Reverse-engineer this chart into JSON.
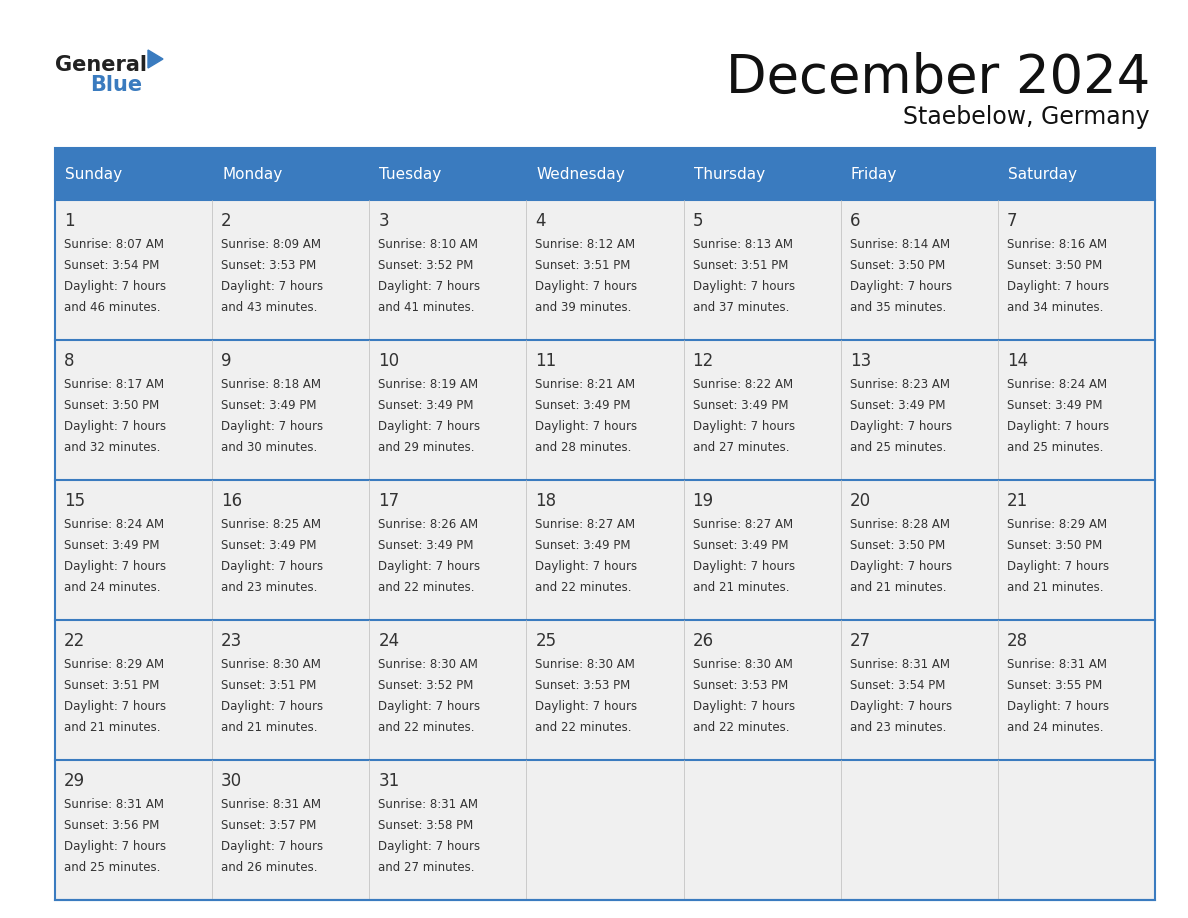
{
  "title": "December 2024",
  "subtitle": "Staebelow, Germany",
  "header_color": "#3a7bbf",
  "header_text_color": "#ffffff",
  "cell_bg_color": "#f0f0f0",
  "border_color": "#3a7bbf",
  "separator_color": "#3a7bbf",
  "text_color": "#333333",
  "days_of_week": [
    "Sunday",
    "Monday",
    "Tuesday",
    "Wednesday",
    "Thursday",
    "Friday",
    "Saturday"
  ],
  "weeks": [
    [
      {
        "day": 1,
        "sunrise": "8:07 AM",
        "sunset": "3:54 PM",
        "daylight_min": "46"
      },
      {
        "day": 2,
        "sunrise": "8:09 AM",
        "sunset": "3:53 PM",
        "daylight_min": "43"
      },
      {
        "day": 3,
        "sunrise": "8:10 AM",
        "sunset": "3:52 PM",
        "daylight_min": "41"
      },
      {
        "day": 4,
        "sunrise": "8:12 AM",
        "sunset": "3:51 PM",
        "daylight_min": "39"
      },
      {
        "day": 5,
        "sunrise": "8:13 AM",
        "sunset": "3:51 PM",
        "daylight_min": "37"
      },
      {
        "day": 6,
        "sunrise": "8:14 AM",
        "sunset": "3:50 PM",
        "daylight_min": "35"
      },
      {
        "day": 7,
        "sunrise": "8:16 AM",
        "sunset": "3:50 PM",
        "daylight_min": "34"
      }
    ],
    [
      {
        "day": 8,
        "sunrise": "8:17 AM",
        "sunset": "3:50 PM",
        "daylight_min": "32"
      },
      {
        "day": 9,
        "sunrise": "8:18 AM",
        "sunset": "3:49 PM",
        "daylight_min": "30"
      },
      {
        "day": 10,
        "sunrise": "8:19 AM",
        "sunset": "3:49 PM",
        "daylight_min": "29"
      },
      {
        "day": 11,
        "sunrise": "8:21 AM",
        "sunset": "3:49 PM",
        "daylight_min": "28"
      },
      {
        "day": 12,
        "sunrise": "8:22 AM",
        "sunset": "3:49 PM",
        "daylight_min": "27"
      },
      {
        "day": 13,
        "sunrise": "8:23 AM",
        "sunset": "3:49 PM",
        "daylight_min": "25"
      },
      {
        "day": 14,
        "sunrise": "8:24 AM",
        "sunset": "3:49 PM",
        "daylight_min": "25"
      }
    ],
    [
      {
        "day": 15,
        "sunrise": "8:24 AM",
        "sunset": "3:49 PM",
        "daylight_min": "24"
      },
      {
        "day": 16,
        "sunrise": "8:25 AM",
        "sunset": "3:49 PM",
        "daylight_min": "23"
      },
      {
        "day": 17,
        "sunrise": "8:26 AM",
        "sunset": "3:49 PM",
        "daylight_min": "22"
      },
      {
        "day": 18,
        "sunrise": "8:27 AM",
        "sunset": "3:49 PM",
        "daylight_min": "22"
      },
      {
        "day": 19,
        "sunrise": "8:27 AM",
        "sunset": "3:49 PM",
        "daylight_min": "21"
      },
      {
        "day": 20,
        "sunrise": "8:28 AM",
        "sunset": "3:50 PM",
        "daylight_min": "21"
      },
      {
        "day": 21,
        "sunrise": "8:29 AM",
        "sunset": "3:50 PM",
        "daylight_min": "21"
      }
    ],
    [
      {
        "day": 22,
        "sunrise": "8:29 AM",
        "sunset": "3:51 PM",
        "daylight_min": "21"
      },
      {
        "day": 23,
        "sunrise": "8:30 AM",
        "sunset": "3:51 PM",
        "daylight_min": "21"
      },
      {
        "day": 24,
        "sunrise": "8:30 AM",
        "sunset": "3:52 PM",
        "daylight_min": "22"
      },
      {
        "day": 25,
        "sunrise": "8:30 AM",
        "sunset": "3:53 PM",
        "daylight_min": "22"
      },
      {
        "day": 26,
        "sunrise": "8:30 AM",
        "sunset": "3:53 PM",
        "daylight_min": "22"
      },
      {
        "day": 27,
        "sunrise": "8:31 AM",
        "sunset": "3:54 PM",
        "daylight_min": "23"
      },
      {
        "day": 28,
        "sunrise": "8:31 AM",
        "sunset": "3:55 PM",
        "daylight_min": "24"
      }
    ],
    [
      {
        "day": 29,
        "sunrise": "8:31 AM",
        "sunset": "3:56 PM",
        "daylight_min": "25"
      },
      {
        "day": 30,
        "sunrise": "8:31 AM",
        "sunset": "3:57 PM",
        "daylight_min": "26"
      },
      {
        "day": 31,
        "sunrise": "8:31 AM",
        "sunset": "3:58 PM",
        "daylight_min": "27"
      },
      null,
      null,
      null,
      null
    ]
  ]
}
